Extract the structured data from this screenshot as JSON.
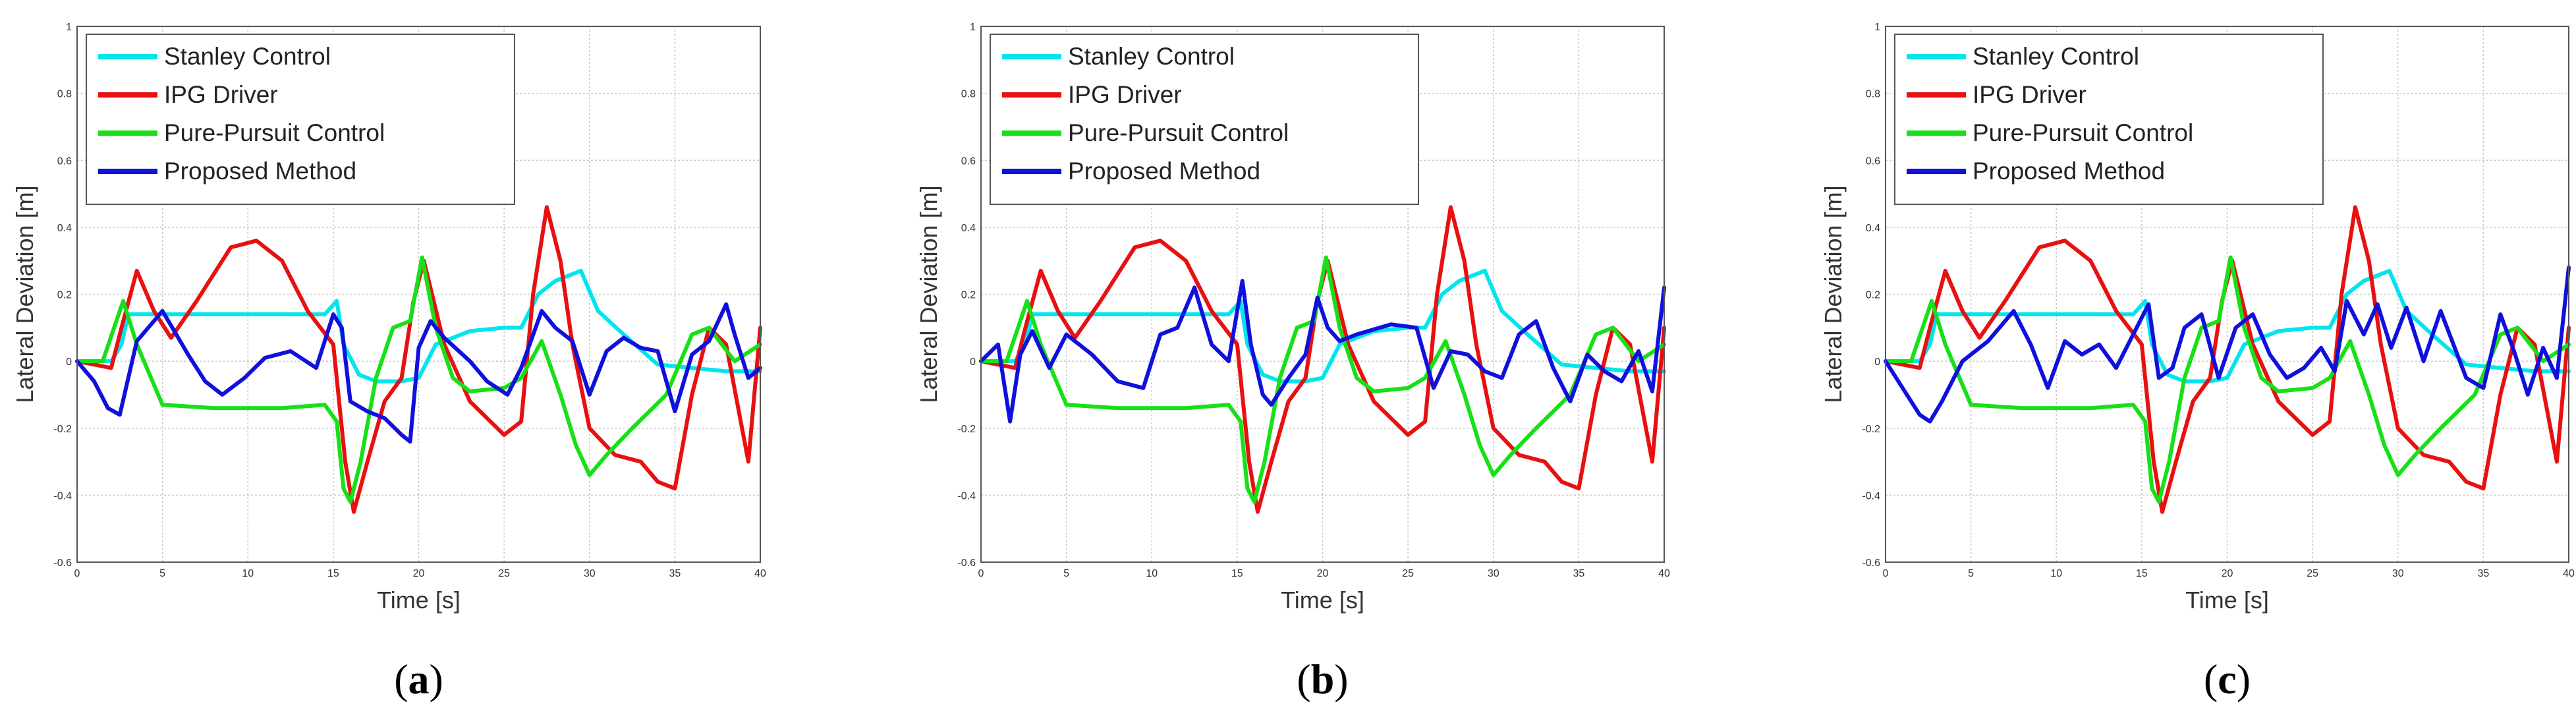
{
  "figure": {
    "captions": [
      {
        "open": "(",
        "letter": "a",
        "close": ")"
      },
      {
        "open": "(",
        "letter": "b",
        "close": ")"
      },
      {
        "open": "(",
        "letter": "c",
        "close": ")"
      }
    ]
  },
  "chart_data": [
    {
      "type": "line",
      "panel": "a",
      "title": "",
      "xlabel": "Time [s]",
      "ylabel": "Lateral Deviation [m]",
      "xlim": [
        0,
        40
      ],
      "ylim": [
        -0.6,
        1
      ],
      "grid": true,
      "legend_position": "top-left",
      "x_ticks": [
        "0",
        "5",
        "10",
        "15",
        "20",
        "25",
        "30",
        "35",
        "40"
      ],
      "y_ticks": [
        "1",
        "0.8",
        "0.6",
        "0.4",
        "0.2",
        "0",
        "-0.2",
        "-0.4",
        "-0.6"
      ],
      "series": [
        {
          "name": "Stanley Control",
          "color": "#00e5ee",
          "x": [
            0,
            2,
            2.6,
            3,
            5,
            10,
            14.5,
            15.2,
            15.6,
            16.5,
            17.5,
            19,
            20,
            21,
            23,
            25,
            26,
            27,
            28,
            29.5,
            30.5,
            32,
            34,
            36,
            38,
            40
          ],
          "y": [
            0,
            0,
            0.05,
            0.14,
            0.14,
            0.14,
            0.14,
            0.18,
            0.05,
            -0.04,
            -0.06,
            -0.06,
            -0.05,
            0.05,
            0.09,
            0.1,
            0.1,
            0.2,
            0.24,
            0.27,
            0.15,
            0.08,
            -0.01,
            -0.02,
            -0.03,
            -0.03
          ]
        },
        {
          "name": "IPG Driver",
          "color": "#e81010",
          "x": [
            0,
            2,
            2.6,
            3.5,
            4.5,
            5.5,
            7,
            9,
            10.5,
            12,
            13.5,
            15,
            15.7,
            16.2,
            17,
            18,
            19,
            19.7,
            20.3,
            21.5,
            23,
            25,
            26,
            26.7,
            27.5,
            28.3,
            29,
            30,
            31.5,
            33,
            34,
            35,
            36,
            37,
            38,
            39.3,
            40
          ],
          "y": [
            0,
            -0.02,
            0.1,
            0.27,
            0.15,
            0.07,
            0.18,
            0.34,
            0.36,
            0.3,
            0.15,
            0.05,
            -0.3,
            -0.45,
            -0.3,
            -0.12,
            -0.05,
            0.18,
            0.3,
            0.05,
            -0.12,
            -0.22,
            -0.18,
            0.2,
            0.46,
            0.3,
            0.05,
            -0.2,
            -0.28,
            -0.3,
            -0.36,
            -0.38,
            -0.1,
            0.1,
            0.05,
            -0.3,
            0.1
          ]
        },
        {
          "name": "Pure-Pursuit Control",
          "color": "#16e016",
          "x": [
            0,
            1.5,
            2.7,
            3.5,
            5,
            8,
            12,
            14.5,
            15.2,
            15.6,
            16,
            16.6,
            17.5,
            18.5,
            19.5,
            20.2,
            21,
            22,
            23,
            25,
            26,
            27.2,
            28.3,
            29.2,
            30,
            31,
            32.5,
            34.5,
            36,
            37,
            38.5,
            40
          ],
          "y": [
            0,
            0,
            0.18,
            0.05,
            -0.13,
            -0.14,
            -0.14,
            -0.13,
            -0.18,
            -0.38,
            -0.42,
            -0.3,
            -0.05,
            0.1,
            0.12,
            0.31,
            0.1,
            -0.05,
            -0.09,
            -0.08,
            -0.05,
            0.06,
            -0.1,
            -0.25,
            -0.34,
            -0.28,
            -0.2,
            -0.1,
            0.08,
            0.1,
            0,
            0.05
          ]
        },
        {
          "name": "Proposed Method",
          "color": "#1010dd",
          "x": [
            0,
            1,
            1.8,
            2.5,
            3.5,
            5,
            6.5,
            7.5,
            8.5,
            9.8,
            11,
            12.5,
            14,
            15,
            15.5,
            16,
            17,
            18,
            19,
            19.5,
            20,
            20.7,
            21.5,
            23,
            24,
            25.2,
            26,
            27.2,
            28,
            29,
            30,
            31,
            32,
            33,
            34,
            35,
            36,
            37,
            38,
            38.5,
            39.3,
            40
          ],
          "y": [
            0,
            -0.06,
            -0.14,
            -0.16,
            0.06,
            0.15,
            0.02,
            -0.06,
            -0.1,
            -0.05,
            0.01,
            0.03,
            -0.02,
            0.14,
            0.1,
            -0.12,
            -0.15,
            -0.17,
            -0.22,
            -0.24,
            0.04,
            0.12,
            0.07,
            0,
            -0.06,
            -0.1,
            -0.02,
            0.15,
            0.1,
            0.06,
            -0.1,
            0.03,
            0.07,
            0.04,
            0.03,
            -0.15,
            0.02,
            0.06,
            0.17,
            0.08,
            -0.05,
            -0.02
          ]
        }
      ]
    },
    {
      "type": "line",
      "panel": "b",
      "title": "",
      "xlabel": "Time [s]",
      "ylabel": "Lateral Deviation [m]",
      "xlim": [
        0,
        40
      ],
      "ylim": [
        -0.6,
        1
      ],
      "grid": true,
      "legend_position": "top-left",
      "x_ticks": [
        "0",
        "5",
        "10",
        "15",
        "20",
        "25",
        "30",
        "35",
        "40"
      ],
      "y_ticks": [
        "1",
        "0.8",
        "0.6",
        "0.4",
        "0.2",
        "0",
        "-0.2",
        "-0.4",
        "-0.6"
      ],
      "series": [
        {
          "name": "Stanley Control",
          "color": "#00e5ee",
          "x": [
            0,
            2,
            2.6,
            3,
            5,
            10,
            14.5,
            15.2,
            15.6,
            16.5,
            17.5,
            19,
            20,
            21,
            23,
            25,
            26,
            27,
            28,
            29.5,
            30.5,
            32,
            34,
            36,
            38,
            40
          ],
          "y": [
            0,
            0,
            0.05,
            0.14,
            0.14,
            0.14,
            0.14,
            0.18,
            0.05,
            -0.04,
            -0.06,
            -0.06,
            -0.05,
            0.05,
            0.09,
            0.1,
            0.1,
            0.2,
            0.24,
            0.27,
            0.15,
            0.08,
            -0.01,
            -0.02,
            -0.03,
            -0.03
          ]
        },
        {
          "name": "IPG Driver",
          "color": "#e81010",
          "x": [
            0,
            2,
            2.6,
            3.5,
            4.5,
            5.5,
            7,
            9,
            10.5,
            12,
            13.5,
            15,
            15.7,
            16.2,
            17,
            18,
            19,
            19.7,
            20.3,
            21.5,
            23,
            25,
            26,
            26.7,
            27.5,
            28.3,
            29,
            30,
            31.5,
            33,
            34,
            35,
            36,
            37,
            38,
            39.3,
            40
          ],
          "y": [
            0,
            -0.02,
            0.1,
            0.27,
            0.15,
            0.07,
            0.18,
            0.34,
            0.36,
            0.3,
            0.15,
            0.05,
            -0.3,
            -0.45,
            -0.3,
            -0.12,
            -0.05,
            0.18,
            0.3,
            0.05,
            -0.12,
            -0.22,
            -0.18,
            0.2,
            0.46,
            0.3,
            0.05,
            -0.2,
            -0.28,
            -0.3,
            -0.36,
            -0.38,
            -0.1,
            0.1,
            0.05,
            -0.3,
            0.1
          ]
        },
        {
          "name": "Pure-Pursuit Control",
          "color": "#16e016",
          "x": [
            0,
            1.5,
            2.7,
            3.5,
            5,
            8,
            12,
            14.5,
            15.2,
            15.6,
            16,
            16.6,
            17.5,
            18.5,
            19.5,
            20.2,
            21,
            22,
            23,
            25,
            26,
            27.2,
            28.3,
            29.2,
            30,
            31,
            32.5,
            34.5,
            36,
            37,
            38.5,
            40
          ],
          "y": [
            0,
            0,
            0.18,
            0.05,
            -0.13,
            -0.14,
            -0.14,
            -0.13,
            -0.18,
            -0.38,
            -0.42,
            -0.3,
            -0.05,
            0.1,
            0.12,
            0.31,
            0.1,
            -0.05,
            -0.09,
            -0.08,
            -0.05,
            0.06,
            -0.1,
            -0.25,
            -0.34,
            -0.28,
            -0.2,
            -0.1,
            0.08,
            0.1,
            0,
            0.05
          ]
        },
        {
          "name": "Proposed Method",
          "color": "#1010dd",
          "x": [
            0,
            1,
            1.7,
            2.3,
            3,
            4,
            5,
            6.5,
            8,
            9.5,
            10.5,
            11.5,
            12.5,
            13.5,
            14.5,
            15.3,
            15.8,
            16.5,
            17,
            18,
            19,
            19.7,
            20.3,
            21,
            22,
            24,
            25.5,
            26.5,
            27.5,
            28.5,
            29.5,
            30.5,
            31.5,
            32.5,
            33.5,
            34.5,
            35.5,
            36.5,
            37.5,
            38.5,
            39.3,
            40
          ],
          "y": [
            0,
            0.05,
            -0.18,
            0.02,
            0.09,
            -0.02,
            0.08,
            0.02,
            -0.06,
            -0.08,
            0.08,
            0.1,
            0.22,
            0.05,
            0,
            0.24,
            0.05,
            -0.1,
            -0.13,
            -0.05,
            0.02,
            0.19,
            0.1,
            0.06,
            0.08,
            0.11,
            0.1,
            -0.08,
            0.03,
            0.02,
            -0.03,
            -0.05,
            0.08,
            0.12,
            -0.02,
            -0.12,
            0.02,
            -0.03,
            -0.06,
            0.03,
            -0.09,
            0.22
          ]
        }
      ]
    },
    {
      "type": "line",
      "panel": "c",
      "title": "",
      "xlabel": "Time [s]",
      "ylabel": "Lateral Deviation [m]",
      "xlim": [
        0,
        40
      ],
      "ylim": [
        -0.6,
        1
      ],
      "grid": true,
      "legend_position": "top-left",
      "x_ticks": [
        "0",
        "5",
        "10",
        "15",
        "20",
        "25",
        "30",
        "35",
        "40"
      ],
      "y_ticks": [
        "1",
        "0.8",
        "0.6",
        "0.4",
        "0.2",
        "0",
        "-0.2",
        "-0.4",
        "-0.6"
      ],
      "series": [
        {
          "name": "Stanley Control",
          "color": "#00e5ee",
          "x": [
            0,
            2,
            2.6,
            3,
            5,
            10,
            14.5,
            15.2,
            15.6,
            16.5,
            17.5,
            19,
            20,
            21,
            23,
            25,
            26,
            27,
            28,
            29.5,
            30.5,
            32,
            34,
            36,
            38,
            40
          ],
          "y": [
            0,
            0,
            0.05,
            0.14,
            0.14,
            0.14,
            0.14,
            0.18,
            0.05,
            -0.04,
            -0.06,
            -0.06,
            -0.05,
            0.05,
            0.09,
            0.1,
            0.1,
            0.2,
            0.24,
            0.27,
            0.15,
            0.08,
            -0.01,
            -0.02,
            -0.03,
            -0.03
          ]
        },
        {
          "name": "IPG Driver",
          "color": "#e81010",
          "x": [
            0,
            2,
            2.6,
            3.5,
            4.5,
            5.5,
            7,
            9,
            10.5,
            12,
            13.5,
            15,
            15.7,
            16.2,
            17,
            18,
            19,
            19.7,
            20.3,
            21.5,
            23,
            25,
            26,
            26.7,
            27.5,
            28.3,
            29,
            30,
            31.5,
            33,
            34,
            35,
            36,
            37,
            38,
            39.3,
            40
          ],
          "y": [
            0,
            -0.02,
            0.1,
            0.27,
            0.15,
            0.07,
            0.18,
            0.34,
            0.36,
            0.3,
            0.15,
            0.05,
            -0.3,
            -0.45,
            -0.3,
            -0.12,
            -0.05,
            0.18,
            0.3,
            0.05,
            -0.12,
            -0.22,
            -0.18,
            0.2,
            0.46,
            0.3,
            0.05,
            -0.2,
            -0.28,
            -0.3,
            -0.36,
            -0.38,
            -0.1,
            0.1,
            0.05,
            -0.3,
            0.1
          ]
        },
        {
          "name": "Pure-Pursuit Control",
          "color": "#16e016",
          "x": [
            0,
            1.5,
            2.7,
            3.5,
            5,
            8,
            12,
            14.5,
            15.2,
            15.6,
            16,
            16.6,
            17.5,
            18.5,
            19.5,
            20.2,
            21,
            22,
            23,
            25,
            26,
            27.2,
            28.3,
            29.2,
            30,
            31,
            32.5,
            34.5,
            36,
            37,
            38.5,
            40
          ],
          "y": [
            0,
            0,
            0.18,
            0.05,
            -0.13,
            -0.14,
            -0.14,
            -0.13,
            -0.18,
            -0.38,
            -0.42,
            -0.3,
            -0.05,
            0.1,
            0.12,
            0.31,
            0.1,
            -0.05,
            -0.09,
            -0.08,
            -0.05,
            0.06,
            -0.1,
            -0.25,
            -0.34,
            -0.28,
            -0.2,
            -0.1,
            0.08,
            0.1,
            0,
            0.05
          ]
        },
        {
          "name": "Proposed Method",
          "color": "#1010dd",
          "x": [
            0,
            1,
            2,
            2.6,
            3.3,
            4.5,
            6,
            7.5,
            8.5,
            9.5,
            10.5,
            11.5,
            12.5,
            13.5,
            14.5,
            15.4,
            16,
            16.8,
            17.5,
            18.5,
            19.5,
            20.5,
            21.5,
            22.5,
            23.5,
            24.5,
            25.5,
            26.3,
            27,
            28,
            28.8,
            29.6,
            30.5,
            31.5,
            32.5,
            34,
            35,
            36,
            36.8,
            37.6,
            38.5,
            39.3,
            40
          ],
          "y": [
            0,
            -0.08,
            -0.16,
            -0.18,
            -0.12,
            0,
            0.06,
            0.15,
            0.05,
            -0.08,
            0.06,
            0.02,
            0.05,
            -0.02,
            0.08,
            0.17,
            -0.05,
            -0.02,
            0.1,
            0.14,
            -0.05,
            0.1,
            0.14,
            0.02,
            -0.05,
            -0.02,
            0.04,
            -0.03,
            0.18,
            0.08,
            0.17,
            0.04,
            0.16,
            0,
            0.15,
            -0.05,
            -0.08,
            0.14,
            0.03,
            -0.1,
            0.04,
            -0.05,
            0.28
          ]
        }
      ]
    }
  ]
}
